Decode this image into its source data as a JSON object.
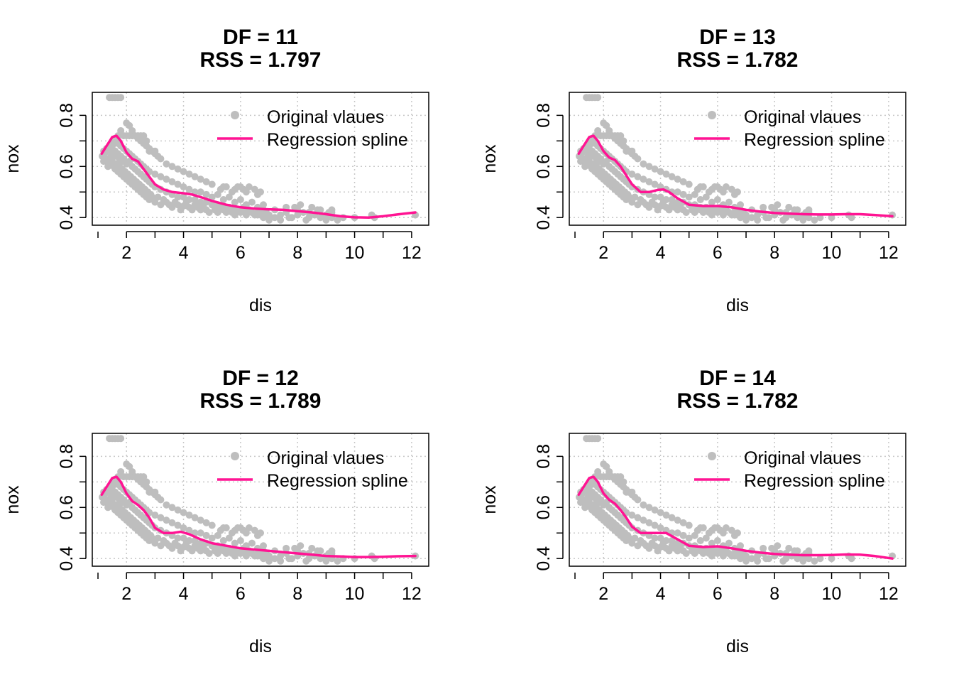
{
  "colors": {
    "points": "#bebebe",
    "spline": "#ff1493",
    "grid": "#c8c8c8",
    "axes": "#000000"
  },
  "chart_data": [
    {
      "type": "scatter",
      "title": "DF =  11",
      "subtitle": "RSS = 1.797",
      "xlabel": "dis",
      "ylabel": "nox",
      "xlim": [
        0.8,
        12.6
      ],
      "ylim": [
        0.37,
        0.89
      ],
      "xticks": [
        "2",
        "4",
        "6",
        "8",
        "10",
        "12"
      ],
      "xtick_values": [
        2,
        4,
        6,
        8,
        10,
        12
      ],
      "yticks": [
        "0.4",
        "0.6",
        "0.8"
      ],
      "ytick_values": [
        0.4,
        0.6,
        0.8
      ],
      "grid": true,
      "legend_position": "top-right",
      "legend": [
        "Original vlaues",
        "Regression spline"
      ],
      "series": [
        {
          "name": "Regression spline",
          "type": "line",
          "x": [
            1.13,
            1.3,
            1.5,
            1.65,
            1.8,
            2.0,
            2.2,
            2.4,
            2.6,
            2.8,
            3.0,
            3.3,
            3.6,
            4.0,
            4.3,
            4.6,
            5.0,
            5.5,
            6.0,
            6.5,
            7.0,
            7.5,
            8.0,
            8.5,
            9.0,
            9.5,
            10.0,
            10.5,
            11.0,
            11.5,
            12.13
          ],
          "y": [
            0.65,
            0.68,
            0.715,
            0.72,
            0.7,
            0.655,
            0.63,
            0.62,
            0.59,
            0.56,
            0.53,
            0.51,
            0.5,
            0.495,
            0.49,
            0.48,
            0.465,
            0.45,
            0.44,
            0.435,
            0.432,
            0.43,
            0.425,
            0.42,
            0.413,
            0.405,
            0.401,
            0.4,
            0.405,
            0.412,
            0.42
          ]
        }
      ]
    },
    {
      "type": "scatter",
      "title": "DF =  13",
      "subtitle": "RSS = 1.782",
      "xlabel": "dis",
      "ylabel": "nox",
      "xlim": [
        0.8,
        12.6
      ],
      "ylim": [
        0.37,
        0.89
      ],
      "xticks": [
        "2",
        "4",
        "6",
        "8",
        "10",
        "12"
      ],
      "xtick_values": [
        2,
        4,
        6,
        8,
        10,
        12
      ],
      "yticks": [
        "0.4",
        "0.6",
        "0.8"
      ],
      "ytick_values": [
        0.4,
        0.6,
        0.8
      ],
      "grid": true,
      "legend_position": "top-right",
      "legend": [
        "Original vlaues",
        "Regression spline"
      ],
      "series": [
        {
          "name": "Regression spline",
          "type": "line",
          "x": [
            1.13,
            1.3,
            1.5,
            1.65,
            1.8,
            2.0,
            2.2,
            2.4,
            2.6,
            2.8,
            3.0,
            3.3,
            3.6,
            3.9,
            4.1,
            4.3,
            4.6,
            5.0,
            5.5,
            6.0,
            6.5,
            7.0,
            7.5,
            8.0,
            8.5,
            9.0,
            9.5,
            10.0,
            10.5,
            11.0,
            11.5,
            12.13
          ],
          "y": [
            0.65,
            0.68,
            0.715,
            0.72,
            0.7,
            0.66,
            0.635,
            0.625,
            0.6,
            0.565,
            0.53,
            0.5,
            0.5,
            0.508,
            0.51,
            0.5,
            0.475,
            0.45,
            0.445,
            0.445,
            0.44,
            0.43,
            0.423,
            0.418,
            0.415,
            0.413,
            0.412,
            0.412,
            0.413,
            0.413,
            0.41,
            0.405
          ]
        }
      ]
    },
    {
      "type": "scatter",
      "title": "DF =  12",
      "subtitle": "RSS = 1.789",
      "xlabel": "dis",
      "ylabel": "nox",
      "xlim": [
        0.8,
        12.6
      ],
      "ylim": [
        0.37,
        0.89
      ],
      "xticks": [
        "2",
        "4",
        "6",
        "8",
        "10",
        "12"
      ],
      "xtick_values": [
        2,
        4,
        6,
        8,
        10,
        12
      ],
      "yticks": [
        "0.4",
        "0.6",
        "0.8"
      ],
      "ytick_values": [
        0.4,
        0.6,
        0.8
      ],
      "grid": true,
      "legend_position": "top-right",
      "legend": [
        "Original vlaues",
        "Regression spline"
      ],
      "series": [
        {
          "name": "Regression spline",
          "type": "line",
          "x": [
            1.13,
            1.3,
            1.5,
            1.65,
            1.8,
            2.0,
            2.2,
            2.4,
            2.6,
            2.8,
            3.0,
            3.3,
            3.6,
            3.9,
            4.2,
            4.6,
            5.0,
            5.5,
            6.0,
            6.5,
            7.0,
            7.5,
            8.0,
            8.5,
            9.0,
            9.5,
            10.0,
            10.5,
            11.0,
            11.5,
            12.13
          ],
          "y": [
            0.65,
            0.68,
            0.715,
            0.72,
            0.7,
            0.655,
            0.625,
            0.61,
            0.59,
            0.56,
            0.52,
            0.5,
            0.5,
            0.505,
            0.495,
            0.475,
            0.46,
            0.45,
            0.44,
            0.435,
            0.43,
            0.425,
            0.42,
            0.415,
            0.41,
            0.408,
            0.406,
            0.406,
            0.407,
            0.409,
            0.41
          ]
        }
      ]
    },
    {
      "type": "scatter",
      "title": "DF =  14",
      "subtitle": "RSS = 1.782",
      "xlabel": "dis",
      "ylabel": "nox",
      "xlim": [
        0.8,
        12.6
      ],
      "ylim": [
        0.37,
        0.89
      ],
      "xticks": [
        "2",
        "4",
        "6",
        "8",
        "10",
        "12"
      ],
      "xtick_values": [
        2,
        4,
        6,
        8,
        10,
        12
      ],
      "yticks": [
        "0.4",
        "0.6",
        "0.8"
      ],
      "ytick_values": [
        0.4,
        0.6,
        0.8
      ],
      "grid": true,
      "legend_position": "top-right",
      "legend": [
        "Original vlaues",
        "Regression spline"
      ],
      "series": [
        {
          "name": "Regression spline",
          "type": "line",
          "x": [
            1.13,
            1.3,
            1.5,
            1.65,
            1.8,
            2.0,
            2.2,
            2.4,
            2.6,
            2.8,
            3.0,
            3.3,
            3.6,
            3.9,
            4.2,
            4.6,
            5.0,
            5.5,
            6.0,
            6.5,
            7.0,
            7.5,
            8.0,
            8.5,
            9.0,
            9.5,
            10.0,
            10.5,
            11.0,
            11.5,
            12.13
          ],
          "y": [
            0.65,
            0.68,
            0.715,
            0.72,
            0.7,
            0.655,
            0.63,
            0.615,
            0.59,
            0.56,
            0.525,
            0.5,
            0.5,
            0.5,
            0.5,
            0.475,
            0.45,
            0.445,
            0.448,
            0.44,
            0.43,
            0.423,
            0.418,
            0.415,
            0.413,
            0.413,
            0.414,
            0.416,
            0.415,
            0.41,
            0.4
          ]
        }
      ]
    }
  ],
  "points": {
    "dis": [
      1.15,
      1.2,
      1.25,
      1.3,
      1.35,
      1.4,
      1.45,
      1.5,
      1.55,
      1.6,
      1.65,
      1.7,
      1.75,
      1.8,
      1.85,
      1.9,
      1.95,
      2.0,
      2.05,
      2.1,
      2.15,
      2.2,
      2.25,
      2.3,
      2.35,
      2.4,
      2.45,
      2.5,
      2.55,
      2.6,
      2.65,
      2.7,
      2.75,
      2.8,
      2.85,
      2.9,
      2.95,
      3.0,
      3.1,
      3.2,
      3.3,
      3.4,
      3.5,
      3.6,
      3.7,
      3.8,
      3.9,
      4.0,
      4.1,
      4.2,
      4.3,
      4.4,
      4.5,
      4.6,
      4.7,
      4.8,
      4.9,
      5.0,
      5.1,
      5.2,
      5.3,
      5.4,
      5.5,
      5.6,
      5.7,
      5.8,
      5.9,
      6.0,
      6.1,
      6.2,
      6.3,
      6.4,
      6.5,
      6.6,
      6.7,
      6.8,
      6.9,
      7.0,
      7.2,
      7.4,
      7.6,
      7.8,
      8.0,
      8.2,
      8.4,
      8.6,
      8.8,
      9.0,
      9.2,
      9.4,
      9.6,
      10.0,
      10.6,
      10.7,
      12.13,
      1.4,
      1.45,
      1.5,
      1.55,
      1.6,
      1.65,
      1.7,
      1.75,
      1.8,
      1.85,
      1.9,
      2.0,
      2.1,
      2.2,
      2.3,
      2.4,
      2.5,
      2.6,
      2.7,
      2.8,
      2.9,
      3.0,
      3.2,
      3.4,
      3.6,
      3.8,
      4.0,
      4.2,
      4.4,
      4.6,
      4.8,
      5.0,
      5.2,
      5.4,
      5.6,
      5.8,
      6.0,
      6.2,
      6.4,
      6.6,
      1.6,
      1.7,
      1.8,
      1.9,
      2.0,
      2.1,
      2.2,
      2.3,
      2.4,
      2.5,
      2.6,
      2.7,
      2.8,
      3.0,
      3.2,
      3.4,
      3.6,
      3.8,
      4.0,
      4.2,
      4.4,
      4.6,
      4.8,
      5.0,
      5.2,
      5.4,
      5.6,
      5.8,
      6.0,
      6.2,
      6.4,
      6.6,
      6.8,
      7.2,
      7.6,
      8.0,
      8.4,
      8.8,
      9.2,
      2.0,
      2.1,
      2.2,
      2.3,
      2.4,
      2.5,
      2.6,
      2.7,
      2.8,
      2.9,
      3.0,
      3.1,
      3.2,
      3.4,
      3.6,
      3.8,
      4.0,
      4.2,
      4.4,
      4.6,
      4.8,
      5.0,
      5.4,
      5.8,
      6.2,
      6.6,
      1.9,
      2.0,
      2.1,
      2.2,
      2.3,
      2.4,
      2.5,
      2.6,
      2.7,
      2.8,
      2.9,
      3.0,
      1.2,
      1.3,
      1.4,
      1.5,
      1.6,
      1.7,
      1.8,
      1.4,
      1.5,
      1.6,
      1.7,
      1.8,
      5.3,
      5.5,
      5.7,
      5.9,
      6.0,
      6.1,
      6.3,
      6.5,
      6.7,
      7.9,
      8.1,
      8.5,
      8.7,
      9.1,
      9.2,
      6.8,
      7.0,
      7.4,
      7.7,
      8.3,
      9.0
    ],
    "nox": [
      0.64,
      0.62,
      0.655,
      0.63,
      0.6,
      0.61,
      0.64,
      0.62,
      0.6,
      0.59,
      0.61,
      0.58,
      0.6,
      0.57,
      0.59,
      0.56,
      0.58,
      0.55,
      0.57,
      0.54,
      0.56,
      0.53,
      0.55,
      0.52,
      0.54,
      0.51,
      0.53,
      0.5,
      0.52,
      0.49,
      0.51,
      0.48,
      0.5,
      0.47,
      0.49,
      0.48,
      0.47,
      0.46,
      0.48,
      0.45,
      0.47,
      0.46,
      0.45,
      0.44,
      0.46,
      0.45,
      0.43,
      0.445,
      0.46,
      0.44,
      0.43,
      0.45,
      0.44,
      0.43,
      0.44,
      0.43,
      0.42,
      0.45,
      0.43,
      0.42,
      0.44,
      0.43,
      0.42,
      0.44,
      0.42,
      0.41,
      0.43,
      0.42,
      0.44,
      0.41,
      0.43,
      0.42,
      0.41,
      0.42,
      0.41,
      0.43,
      0.42,
      0.41,
      0.4,
      0.41,
      0.42,
      0.4,
      0.41,
      0.42,
      0.4,
      0.41,
      0.4,
      0.41,
      0.4,
      0.39,
      0.4,
      0.4,
      0.41,
      0.4,
      0.41,
      0.67,
      0.66,
      0.68,
      0.65,
      0.66,
      0.64,
      0.65,
      0.63,
      0.64,
      0.62,
      0.63,
      0.61,
      0.62,
      0.6,
      0.59,
      0.58,
      0.57,
      0.56,
      0.55,
      0.54,
      0.53,
      0.52,
      0.51,
      0.5,
      0.49,
      0.48,
      0.48,
      0.47,
      0.47,
      0.46,
      0.46,
      0.45,
      0.45,
      0.44,
      0.44,
      0.43,
      0.43,
      0.42,
      0.42,
      0.41,
      0.7,
      0.69,
      0.68,
      0.67,
      0.66,
      0.65,
      0.64,
      0.63,
      0.62,
      0.61,
      0.6,
      0.59,
      0.58,
      0.57,
      0.56,
      0.55,
      0.54,
      0.53,
      0.52,
      0.51,
      0.5,
      0.5,
      0.49,
      0.48,
      0.49,
      0.47,
      0.48,
      0.46,
      0.47,
      0.45,
      0.46,
      0.44,
      0.45,
      0.43,
      0.44,
      0.43,
      0.42,
      0.43,
      0.42,
      0.77,
      0.76,
      0.74,
      0.72,
      0.71,
      0.7,
      0.69,
      0.68,
      0.67,
      0.66,
      0.65,
      0.64,
      0.63,
      0.61,
      0.6,
      0.59,
      0.58,
      0.57,
      0.56,
      0.55,
      0.54,
      0.53,
      0.52,
      0.51,
      0.5,
      0.49,
      0.72,
      0.72,
      0.72,
      0.72,
      0.72,
      0.72,
      0.72,
      0.72,
      0.7,
      0.66,
      0.66,
      0.66,
      0.66,
      0.67,
      0.68,
      0.69,
      0.71,
      0.72,
      0.74,
      0.87,
      0.87,
      0.87,
      0.87,
      0.87,
      0.51,
      0.52,
      0.5,
      0.52,
      0.52,
      0.51,
      0.52,
      0.51,
      0.5,
      0.44,
      0.45,
      0.44,
      0.43,
      0.42,
      0.43,
      0.4,
      0.39,
      0.39,
      0.4,
      0.39,
      0.39
    ]
  }
}
